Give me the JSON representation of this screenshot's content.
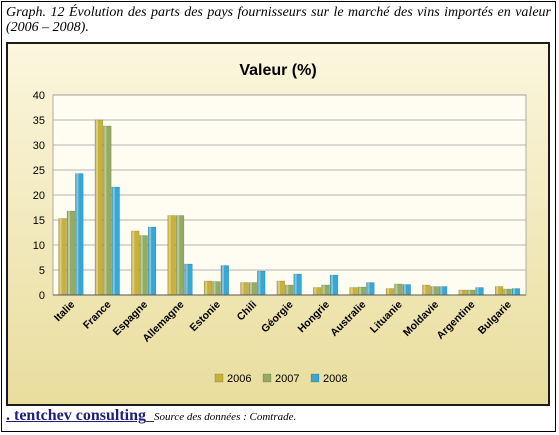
{
  "caption": "Graph. 12 Évolution des parts des pays fournisseurs sur le marché des vins importés en valeur (2006 – 2008).",
  "footer": {
    "brand": ". tentchev consulting",
    "separator": "_",
    "source": "Source des données : Comtrade."
  },
  "colors": {
    "2006": "#c8b13a",
    "2007": "#93ac64",
    "2008": "#3aa6d2",
    "background_gradient": [
      "#fbf6de",
      "#e9dd9d"
    ],
    "plot_background": "#fffdf2"
  },
  "chart_data": {
    "type": "bar",
    "title": "Valeur (%)",
    "xlabel": "",
    "ylabel": "",
    "ylim": [
      0,
      40
    ],
    "yticks": [
      0,
      5,
      10,
      15,
      20,
      25,
      30,
      35,
      40
    ],
    "grid": true,
    "legend": "bottom",
    "categories": [
      "Italie",
      "France",
      "Espagne",
      "Allemagne",
      "Estonie",
      "Chili",
      "Géorgie",
      "Hongrie",
      "Australie",
      "Lituanie",
      "Moldavie",
      "Argentine",
      "Bulgarie"
    ],
    "series": [
      {
        "name": "2006",
        "values": [
          15.3,
          35.0,
          12.8,
          15.9,
          2.8,
          2.5,
          2.8,
          1.5,
          1.5,
          1.3,
          2.0,
          1.0,
          1.7
        ]
      },
      {
        "name": "2007",
        "values": [
          16.8,
          33.8,
          11.9,
          15.9,
          2.7,
          2.5,
          2.0,
          2.0,
          1.6,
          2.2,
          1.7,
          1.0,
          1.2
        ]
      },
      {
        "name": "2008",
        "values": [
          24.3,
          21.6,
          13.6,
          6.2,
          5.9,
          4.8,
          4.2,
          4.0,
          2.5,
          2.1,
          1.7,
          1.5,
          1.3
        ]
      }
    ]
  }
}
